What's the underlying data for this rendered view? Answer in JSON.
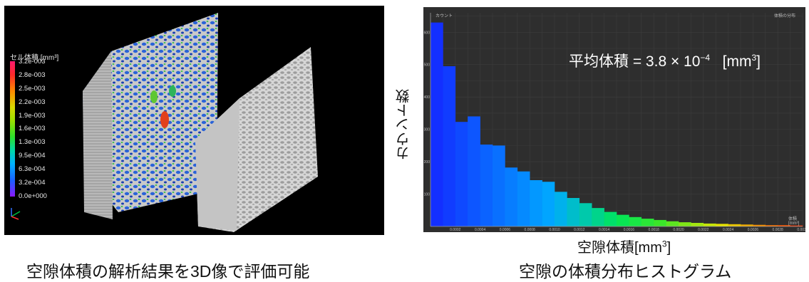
{
  "left_panel": {
    "legend_title": "セル体積 [mm³]",
    "scale_labels": [
      "3.2e-003",
      "2.8e-003",
      "2.5e-003",
      "2.2e-003",
      "1.9e-003",
      "1.6e-003",
      "1.3e-003",
      "9.5e-004",
      "6.3e-004",
      "3.2e-004",
      "0.0e+000"
    ],
    "caption": "空隙体積の解析結果を3D像で評価可能"
  },
  "right_panel": {
    "mean_text": "平均体積 = 3.8 × 10",
    "mean_exp": "−4",
    "mean_unit": "[mm",
    "mean_unit_exp": "3",
    "mean_unit_close": "]",
    "ylabel": "カウント数",
    "xlabel": "空隙体積[mm",
    "xlabel_exp": "3",
    "xlabel_close": "]",
    "caption": "空隙の体積分布ヒストグラム",
    "corner_top_left": "カウント",
    "corner_top_right": "体積の分布",
    "corner_bottom_right": "体積 [mm³]"
  },
  "chart_data": {
    "type": "bar",
    "title": "",
    "xlabel": "空隙体積[mm³]",
    "ylabel": "カウント数",
    "xlim": [
      0,
      0.003
    ],
    "ylim": [
      0,
      660
    ],
    "bin_width": 0.0001,
    "yticks": [
      100,
      200,
      300,
      400,
      500,
      600
    ],
    "xticks": [
      0.0002,
      0.0004,
      0.0006,
      0.0008,
      0.001,
      0.0012,
      0.0014,
      0.0016,
      0.0018,
      0.002,
      0.0022,
      0.0024,
      0.0026,
      0.0028,
      0.003
    ],
    "xtick_labels": [
      "0.0002",
      "0.0004",
      "0.0006",
      "0.0008",
      "0.0010",
      "0.0012",
      "0.0014",
      "0.0016",
      "0.0018",
      "0.0020",
      "0.0022",
      "0.0024",
      "0.0026",
      "0.0028",
      "0.0030"
    ],
    "values": [
      630,
      495,
      323,
      340,
      253,
      250,
      182,
      170,
      143,
      138,
      107,
      88,
      72,
      57,
      45,
      36,
      29,
      24,
      20,
      16,
      13,
      11,
      9,
      8,
      7,
      6,
      5,
      4,
      4,
      3
    ],
    "grid": true
  }
}
